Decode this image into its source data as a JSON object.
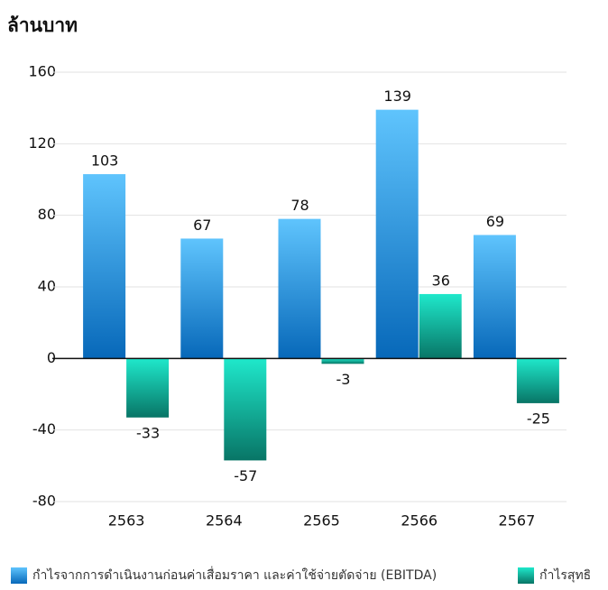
{
  "chart_data": {
    "type": "bar",
    "title": "ล้านบาท",
    "categories": [
      "2563",
      "2564",
      "2565",
      "2566",
      "2567"
    ],
    "series": [
      {
        "name": "กำไรจากการดำเนินงานก่อนค่าเสื่อมราคา และค่าใช้จ่ายตัดจ่าย (EBITDA)",
        "color": [
          "#5fc4fd",
          "#0768b9"
        ],
        "values": [
          103,
          67,
          78,
          139,
          69
        ]
      },
      {
        "name": "กำไรสุทธิ",
        "color": [
          "#1fe8cb",
          "#087566"
        ],
        "values": [
          -33,
          -57,
          -3,
          36,
          -25
        ]
      }
    ],
    "ylim": [
      -80,
      160
    ],
    "yticks": [
      -80,
      -40,
      0,
      40,
      80,
      120,
      160
    ],
    "grid": true,
    "legend": "bottom"
  }
}
